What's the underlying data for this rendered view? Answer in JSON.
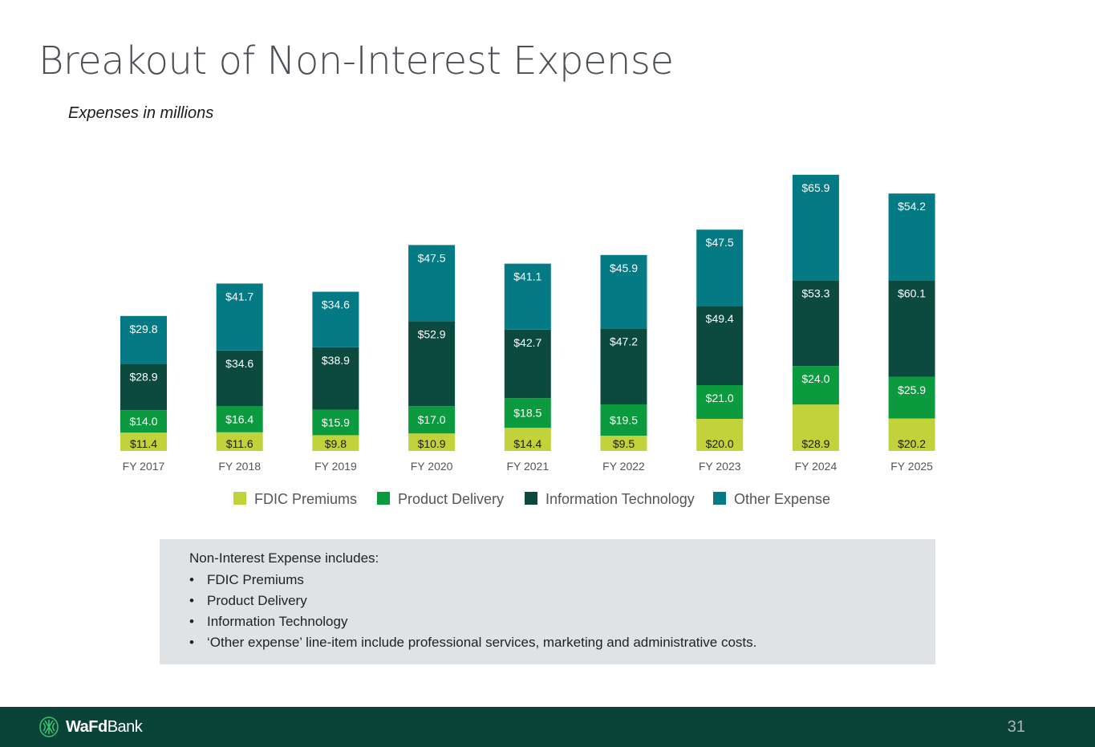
{
  "page": {
    "title": "Breakout of Non-Interest Expense",
    "subtitle": "Expenses in millions",
    "page_number": "31"
  },
  "brand": {
    "name_bold": "WaFd",
    "name_regular": "Bank"
  },
  "note": {
    "heading": "Non-Interest Expense includes:",
    "items": [
      "FDIC Premiums",
      "Product Delivery",
      "Information Technology",
      "‘Other expense’ line-item include professional services, marketing and administrative costs."
    ],
    "bullet": "•"
  },
  "colors": {
    "fdic": "#c2d23a",
    "product": "#0c9a3e",
    "it": "#0c4a40",
    "other": "#047a84",
    "footer": "#0a4338",
    "title": "#4a4f55"
  },
  "chart_data": {
    "type": "bar",
    "stacked": true,
    "units": "millions",
    "categories": [
      "FY 2017",
      "FY 2018",
      "FY 2019",
      "FY 2020",
      "FY 2021",
      "FY 2022",
      "FY 2023",
      "FY 2024",
      "FY 2025"
    ],
    "series": [
      {
        "name": "FDIC Premiums",
        "color": "#c2d23a",
        "values": [
          11.4,
          11.6,
          9.8,
          10.9,
          14.4,
          9.5,
          20.0,
          28.9,
          20.2
        ]
      },
      {
        "name": "Product Delivery",
        "color": "#0c9a3e",
        "values": [
          14.0,
          16.4,
          15.9,
          17.0,
          18.5,
          19.5,
          21.0,
          24.0,
          25.9
        ]
      },
      {
        "name": "Information Technology",
        "color": "#0c4a40",
        "values": [
          28.9,
          34.6,
          38.9,
          52.9,
          42.7,
          47.2,
          49.4,
          53.3,
          60.1
        ]
      },
      {
        "name": "Other Expense",
        "color": "#047a84",
        "values": [
          29.8,
          41.7,
          34.6,
          47.5,
          41.1,
          45.9,
          47.5,
          65.9,
          54.2
        ]
      }
    ],
    "labels": [
      [
        "$11.4",
        "$11.6",
        "$9.8",
        "$10.9",
        "$14.4",
        "$9.5",
        "$20.0",
        "$28.9",
        "$20.2"
      ],
      [
        "$14.0",
        "$16.4",
        "$15.9",
        "$17.0",
        "$18.5",
        "$19.5",
        "$21.0",
        "$24.0",
        "$25.9"
      ],
      [
        "$28.9",
        "$34.6",
        "$38.9",
        "$52.9",
        "$42.7",
        "$47.2",
        "$49.4",
        "$53.3",
        "$60.1"
      ],
      [
        "$29.8",
        "$41.7",
        "$34.6",
        "$47.5",
        "$41.1",
        "$45.9",
        "$47.5",
        "$65.9",
        "$54.2"
      ]
    ],
    "legend_position": "bottom",
    "grid": false
  }
}
